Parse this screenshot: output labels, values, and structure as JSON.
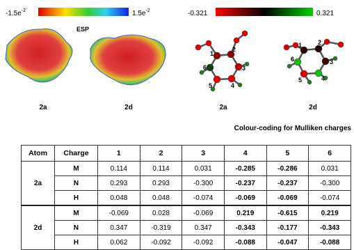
{
  "esp_panel": {
    "scale_min_base": "-1.5e",
    "scale_min_exp": "-2",
    "scale_max_base": "1.5e",
    "scale_max_exp": "-2",
    "label": "ESP",
    "molecules": [
      "2a",
      "2d"
    ]
  },
  "mulliken_panel": {
    "scale_min": "-0.321",
    "scale_max": "0.321",
    "molecules": [
      "2a",
      "2d"
    ],
    "atom_numbers": [
      "1",
      "2",
      "3",
      "4",
      "5",
      "6"
    ],
    "caption": "Colour-coding for Mulliken charges"
  },
  "table": {
    "header": [
      "Atom",
      "Charge",
      "1",
      "2",
      "3",
      "4",
      "5",
      "6"
    ],
    "groups": [
      {
        "atom": "2a",
        "rows": [
          {
            "charge": "M",
            "values": [
              "0.114",
              "0.114",
              "0.031",
              "-0.285",
              "-0.286",
              "0.031"
            ]
          },
          {
            "charge": "N",
            "values": [
              "0.293",
              "0.293",
              "-0.300",
              "-0.237",
              "-0.237",
              "-0.300"
            ]
          },
          {
            "charge": "H",
            "values": [
              "0.048",
              "0.048",
              "-0.074",
              "-0.069",
              "-0.069",
              "-0.074"
            ]
          }
        ]
      },
      {
        "atom": "2d",
        "rows": [
          {
            "charge": "M",
            "values": [
              "-0.069",
              "0.028",
              "-0.069",
              "0.219",
              "-0.615",
              "0.219"
            ]
          },
          {
            "charge": "N",
            "values": [
              "0.347",
              "-0.319",
              "0.347",
              "-0.343",
              "-0.177",
              "-0.343"
            ]
          },
          {
            "charge": "H",
            "values": [
              "0.062",
              "-0.092",
              "-0.092",
              "-0.088",
              "-0.047",
              "-0.088"
            ]
          }
        ]
      }
    ]
  }
}
